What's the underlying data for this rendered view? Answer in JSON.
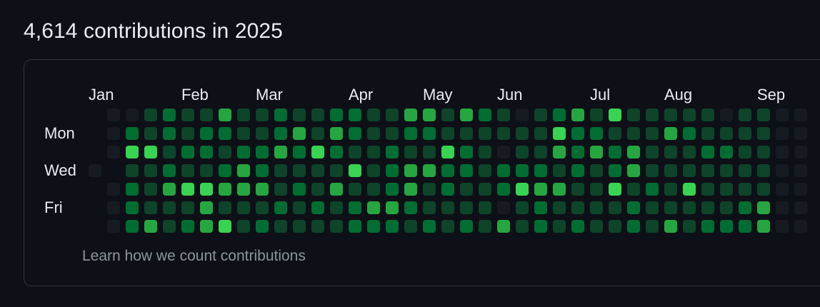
{
  "heading": "4,614 contributions in 2025",
  "months": [
    "Jan",
    "Feb",
    "Mar",
    "Apr",
    "May",
    "Jun",
    "Jul",
    "Aug",
    "Sep"
  ],
  "day_labels": [
    "Mon",
    "Wed",
    "Fri"
  ],
  "footer_link": "Learn how we count contributions",
  "colors": {
    "level0": "#161b22",
    "level1": "#0e4429",
    "level2": "#006d32",
    "level3": "#26a641",
    "level4": "#39d353",
    "card_border": "#30363d",
    "muted_text": "#8b949e"
  },
  "contribution_levels_by_week": [
    [
      0,
      0,
      0,
      -1,
      0,
      0,
      0
    ],
    [
      0,
      2,
      4,
      1,
      2,
      2,
      2
    ],
    [
      1,
      1,
      4,
      1,
      1,
      1,
      3
    ],
    [
      2,
      2,
      1,
      2,
      3,
      1,
      1
    ],
    [
      1,
      1,
      2,
      1,
      4,
      1,
      2
    ],
    [
      1,
      2,
      2,
      1,
      4,
      3,
      3
    ],
    [
      3,
      2,
      1,
      2,
      3,
      1,
      4
    ],
    [
      1,
      1,
      2,
      3,
      3,
      1,
      1
    ],
    [
      1,
      1,
      2,
      2,
      3,
      1,
      2
    ],
    [
      2,
      2,
      3,
      1,
      1,
      2,
      1
    ],
    [
      1,
      3,
      2,
      1,
      2,
      1,
      1
    ],
    [
      1,
      1,
      4,
      1,
      1,
      2,
      1
    ],
    [
      2,
      3,
      2,
      1,
      3,
      1,
      1
    ],
    [
      2,
      2,
      1,
      4,
      1,
      2,
      2
    ],
    [
      1,
      1,
      1,
      1,
      1,
      3,
      2
    ],
    [
      1,
      1,
      2,
      2,
      2,
      3,
      2
    ],
    [
      3,
      2,
      1,
      3,
      3,
      2,
      1
    ],
    [
      3,
      2,
      1,
      3,
      1,
      1,
      2
    ],
    [
      1,
      1,
      4,
      2,
      2,
      1,
      1
    ],
    [
      3,
      1,
      2,
      2,
      1,
      1,
      2
    ],
    [
      2,
      1,
      1,
      1,
      1,
      1,
      1
    ],
    [
      1,
      1,
      0,
      2,
      2,
      0,
      3
    ],
    [
      0,
      1,
      1,
      2,
      4,
      1,
      1
    ],
    [
      1,
      1,
      1,
      2,
      3,
      2,
      2
    ],
    [
      2,
      4,
      3,
      1,
      3,
      1,
      1
    ],
    [
      3,
      2,
      2,
      2,
      1,
      1,
      2
    ],
    [
      1,
      2,
      3,
      1,
      1,
      1,
      1
    ],
    [
      4,
      1,
      2,
      2,
      4,
      1,
      1
    ],
    [
      1,
      1,
      3,
      3,
      1,
      2,
      2
    ],
    [
      1,
      1,
      1,
      1,
      2,
      1,
      1
    ],
    [
      1,
      3,
      1,
      1,
      1,
      1,
      3
    ],
    [
      1,
      2,
      1,
      1,
      4,
      1,
      1
    ],
    [
      1,
      1,
      2,
      1,
      1,
      1,
      2
    ],
    [
      0,
      1,
      2,
      1,
      1,
      1,
      2
    ],
    [
      1,
      1,
      1,
      1,
      1,
      2,
      2
    ],
    [
      1,
      1,
      1,
      1,
      1,
      3,
      3
    ],
    [
      0,
      0,
      0,
      0,
      0,
      0,
      0
    ],
    [
      0,
      0,
      0,
      0,
      0,
      0,
      0
    ]
  ]
}
